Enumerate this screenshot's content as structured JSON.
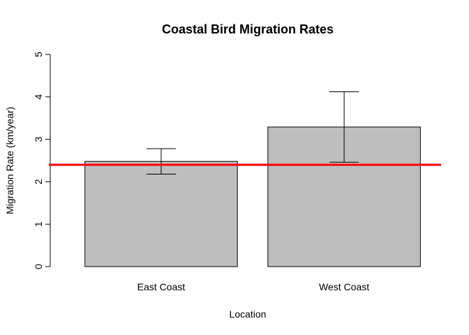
{
  "chart_data": {
    "type": "bar",
    "title": "Coastal Bird Migration Rates",
    "xlabel": "Location",
    "ylabel": "Migration Rate (km/year)",
    "categories": [
      "East Coast",
      "West Coast"
    ],
    "values": [
      2.48,
      3.29
    ],
    "error_bars": [
      {
        "low": 2.18,
        "high": 2.78
      },
      {
        "low": 2.46,
        "high": 4.12
      }
    ],
    "reference_line": {
      "y": 2.4,
      "color": "#ff0000"
    },
    "ylim": [
      0,
      5
    ],
    "yticks": [
      "0",
      "1",
      "2",
      "3",
      "4",
      "5"
    ],
    "bar_fill": "#bebebe",
    "bar_stroke": "#000000",
    "grid": false,
    "legend": "none"
  }
}
